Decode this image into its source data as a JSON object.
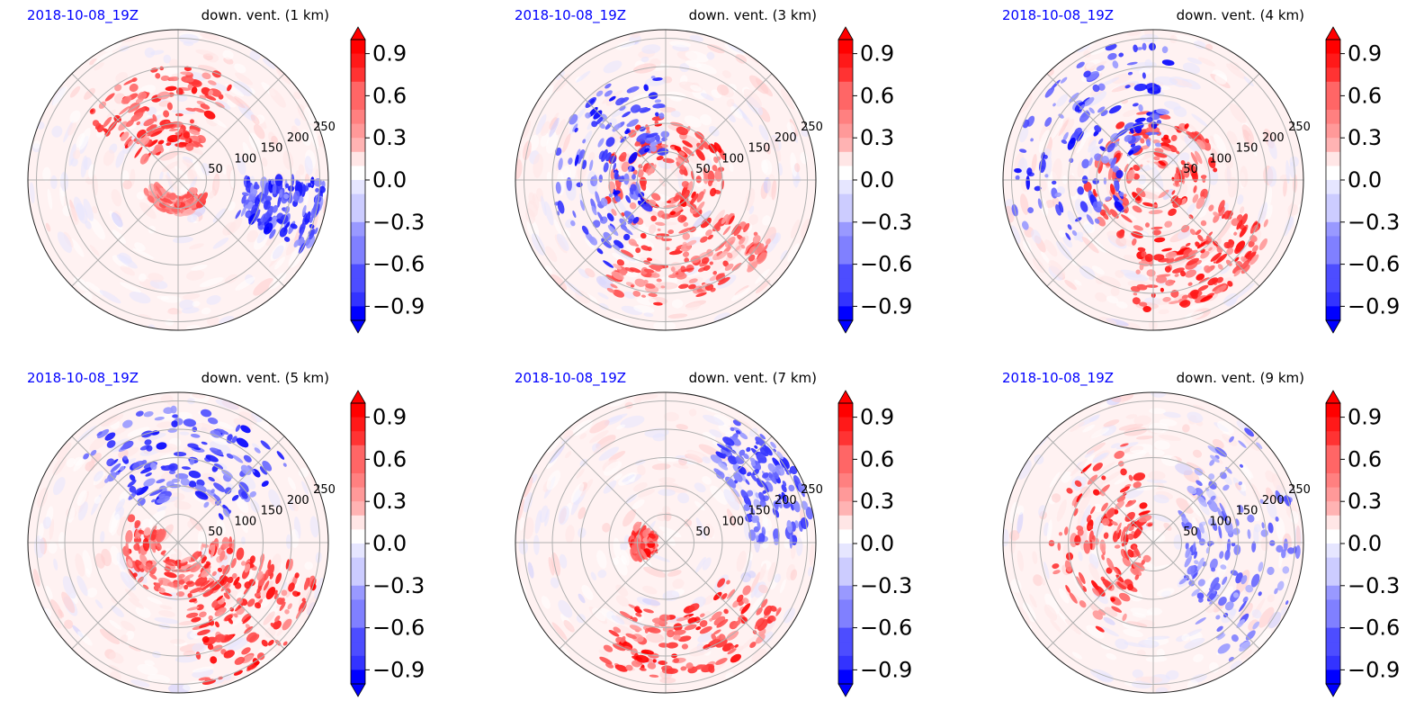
{
  "figure": {
    "colormap": "bwr",
    "colors": {
      "positive": "#ff0000",
      "negative": "#0000ff",
      "neutral": "#ffffff"
    },
    "colorbar_ticks": [
      "0.9",
      "0.6",
      "0.3",
      "0.0",
      "−0.3",
      "−0.6",
      "−0.9"
    ],
    "ring_labels": [
      "50",
      "100",
      "150",
      "200",
      "250"
    ]
  },
  "chart_data": [
    {
      "type": "heatmap",
      "projection": "polar",
      "title_left": "2018-10-08_19Z",
      "title_right": "down. vent. (1 km)",
      "r_ticks": [
        50,
        100,
        150,
        200,
        250
      ],
      "clim": [
        -1.0,
        1.0
      ],
      "colorbar_ticks": [
        0.9,
        0.6,
        0.3,
        0.0,
        -0.3,
        -0.6,
        -0.9
      ],
      "colorbar_extend": "both",
      "grid": true,
      "features": [
        {
          "sign": "positive",
          "kind": "spiral band",
          "r_range": [
            60,
            200
          ],
          "angle_range_deg": [
            60,
            150
          ],
          "peak": 1.0
        },
        {
          "sign": "positive",
          "kind": "inner arc",
          "r_range": [
            30,
            60
          ],
          "angle_range_deg": [
            200,
            330
          ],
          "peak": 0.8
        },
        {
          "sign": "negative",
          "kind": "scattered cells",
          "r_range": [
            120,
            260
          ],
          "angle_range_deg": [
            330,
            360
          ],
          "peak": -1.0
        }
      ]
    },
    {
      "type": "heatmap",
      "projection": "polar",
      "title_left": "2018-10-08_19Z",
      "title_right": "down. vent. (3 km)",
      "r_ticks": [
        50,
        100,
        150,
        200,
        250
      ],
      "clim": [
        -1.0,
        1.0
      ],
      "colorbar_ticks": [
        0.9,
        0.6,
        0.3,
        0.0,
        -0.3,
        -0.6,
        -0.9
      ],
      "colorbar_extend": "both",
      "grid": true,
      "features": [
        {
          "sign": "positive",
          "kind": "eyewall cells",
          "r_range": [
            30,
            110
          ],
          "angle_range_deg": [
            0,
            360
          ],
          "peak": 1.0
        },
        {
          "sign": "positive",
          "kind": "outer band",
          "r_range": [
            120,
            220
          ],
          "angle_range_deg": [
            240,
            330
          ],
          "peak": 0.9
        },
        {
          "sign": "negative",
          "kind": "scattered cells",
          "r_range": [
            50,
            200
          ],
          "angle_range_deg": [
            90,
            240
          ],
          "peak": -1.0
        }
      ]
    },
    {
      "type": "heatmap",
      "projection": "polar",
      "title_left": "2018-10-08_19Z",
      "title_right": "down. vent. (4 km)",
      "r_ticks": [
        50,
        100,
        150,
        200,
        250
      ],
      "clim": [
        -1.0,
        1.0
      ],
      "colorbar_ticks": [
        0.9,
        0.6,
        0.3,
        0.0,
        -0.3,
        -0.6,
        -0.9
      ],
      "colorbar_extend": "both",
      "grid": true,
      "features": [
        {
          "sign": "positive",
          "kind": "eyewall cells",
          "r_range": [
            30,
            120
          ],
          "angle_range_deg": [
            0,
            360
          ],
          "peak": 1.0
        },
        {
          "sign": "positive",
          "kind": "outer band",
          "r_range": [
            120,
            230
          ],
          "angle_range_deg": [
            260,
            340
          ],
          "peak": 1.0
        },
        {
          "sign": "negative",
          "kind": "scattered cells",
          "r_range": [
            60,
            250
          ],
          "angle_range_deg": [
            80,
            220
          ],
          "peak": -1.0
        }
      ]
    },
    {
      "type": "heatmap",
      "projection": "polar",
      "title_left": "2018-10-08_19Z",
      "title_right": "down. vent. (5 km)",
      "r_ticks": [
        50,
        100,
        150,
        200,
        250
      ],
      "clim": [
        -1.0,
        1.0
      ],
      "colorbar_ticks": [
        0.9,
        0.6,
        0.3,
        0.0,
        -0.3,
        -0.6,
        -0.9
      ],
      "colorbar_extend": "both",
      "grid": true,
      "features": [
        {
          "sign": "positive",
          "kind": "southeast band",
          "r_range": [
            100,
            260
          ],
          "angle_range_deg": [
            280,
            350
          ],
          "peak": 1.0
        },
        {
          "sign": "positive",
          "kind": "inner cells",
          "r_range": [
            30,
            100
          ],
          "angle_range_deg": [
            150,
            360
          ],
          "peak": 0.9
        },
        {
          "sign": "negative",
          "kind": "northern cells",
          "r_range": [
            80,
            240
          ],
          "angle_range_deg": [
            30,
            140
          ],
          "peak": -1.0
        }
      ]
    },
    {
      "type": "heatmap",
      "projection": "polar",
      "title_left": "2018-10-08_19Z",
      "title_right": "down. vent. (7 km)",
      "r_ticks": [
        50,
        100,
        150,
        200,
        250
      ],
      "clim": [
        -1.0,
        1.0
      ],
      "colorbar_ticks": [
        0.9,
        0.6,
        0.3,
        0.0,
        -0.3,
        -0.6,
        -0.9
      ],
      "colorbar_extend": "both",
      "grid": true,
      "features": [
        {
          "sign": "positive",
          "kind": "western eyewall",
          "r_range": [
            20,
            60
          ],
          "angle_range_deg": [
            150,
            210
          ],
          "peak": 1.0
        },
        {
          "sign": "positive",
          "kind": "southern band",
          "r_range": [
            120,
            240
          ],
          "angle_range_deg": [
            240,
            330
          ],
          "peak": 1.0
        },
        {
          "sign": "negative",
          "kind": "eastern cells",
          "r_range": [
            150,
            260
          ],
          "angle_range_deg": [
            0,
            60
          ],
          "peak": -0.9
        }
      ]
    },
    {
      "type": "heatmap",
      "projection": "polar",
      "title_left": "2018-10-08_19Z",
      "title_right": "down. vent. (9 km)",
      "r_ticks": [
        50,
        100,
        150,
        200,
        250
      ],
      "clim": [
        -1.0,
        1.0
      ],
      "colorbar_ticks": [
        0.9,
        0.6,
        0.3,
        0.0,
        -0.3,
        -0.6,
        -0.9
      ],
      "colorbar_extend": "both",
      "grid": true,
      "features": [
        {
          "sign": "positive",
          "kind": "western arc",
          "r_range": [
            30,
            180
          ],
          "angle_range_deg": [
            100,
            250
          ],
          "peak": 1.0
        },
        {
          "sign": "negative",
          "kind": "eastern cells",
          "r_range": [
            60,
            260
          ],
          "angle_range_deg": [
            300,
            60
          ],
          "peak": -0.7
        }
      ]
    }
  ]
}
